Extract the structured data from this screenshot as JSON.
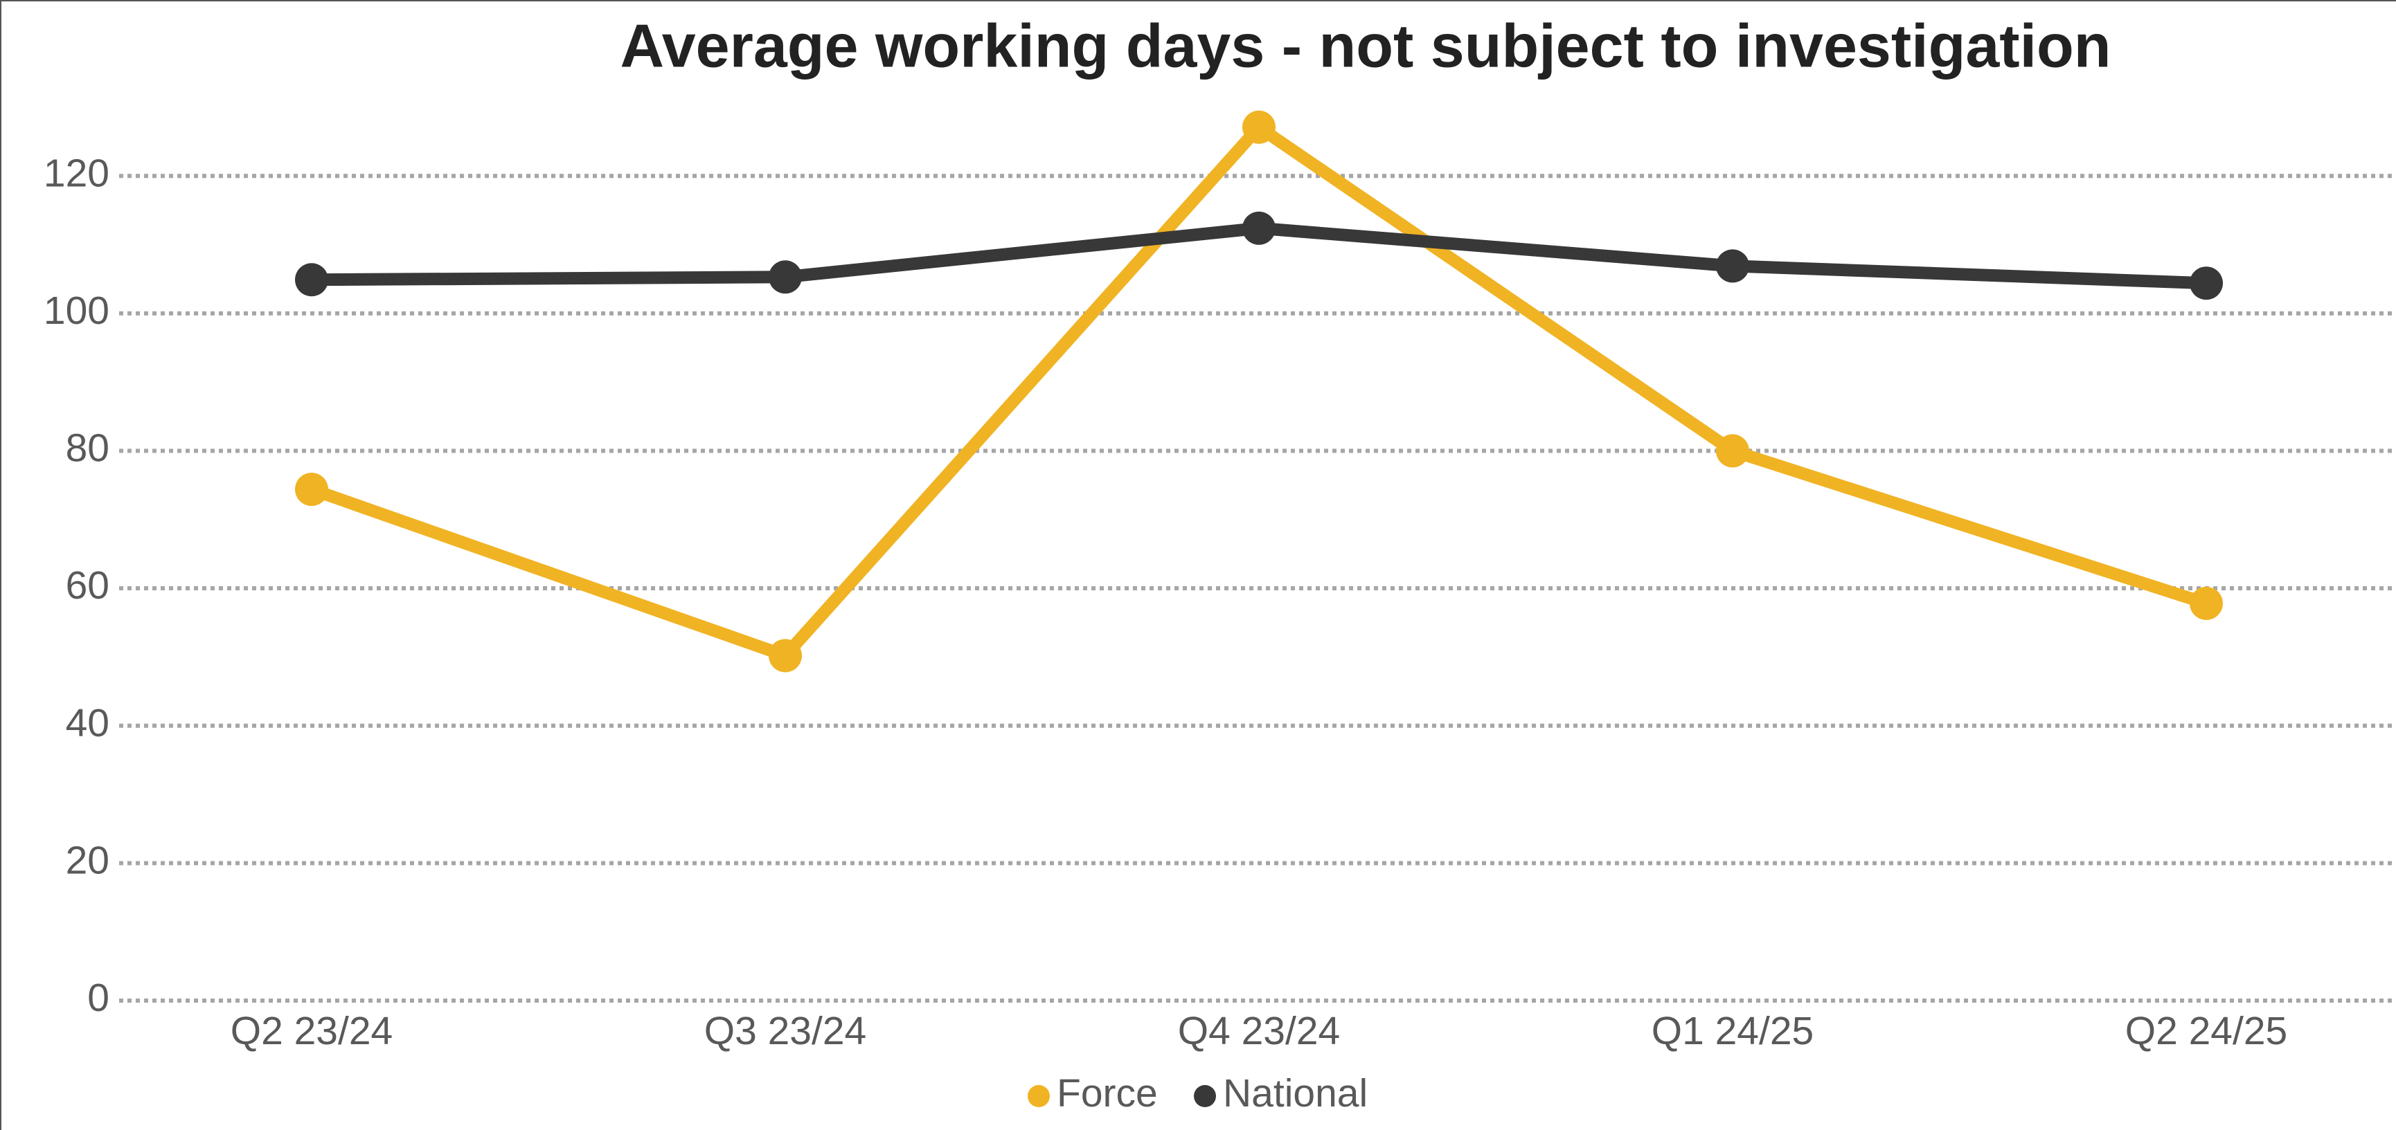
{
  "chart_data": {
    "type": "line",
    "title": "Average working days - not subject to investigation",
    "categories": [
      "Q2 23/24",
      "Q3 23/24",
      "Q4 23/24",
      "Q1 24/25",
      "Q2 24/25"
    ],
    "series": [
      {
        "name": "Force",
        "color": "#f0b323",
        "values": [
          74.4,
          50.2,
          127.1,
          80,
          57.8
        ]
      },
      {
        "name": "National",
        "color": "#383838",
        "values": [
          104.9,
          105.3,
          112.4,
          106.9,
          104.4
        ]
      }
    ],
    "ylim": [
      0,
      130
    ],
    "yticks": [
      0,
      20,
      40,
      60,
      80,
      100,
      120
    ],
    "grid": true,
    "legend": "bottom"
  }
}
